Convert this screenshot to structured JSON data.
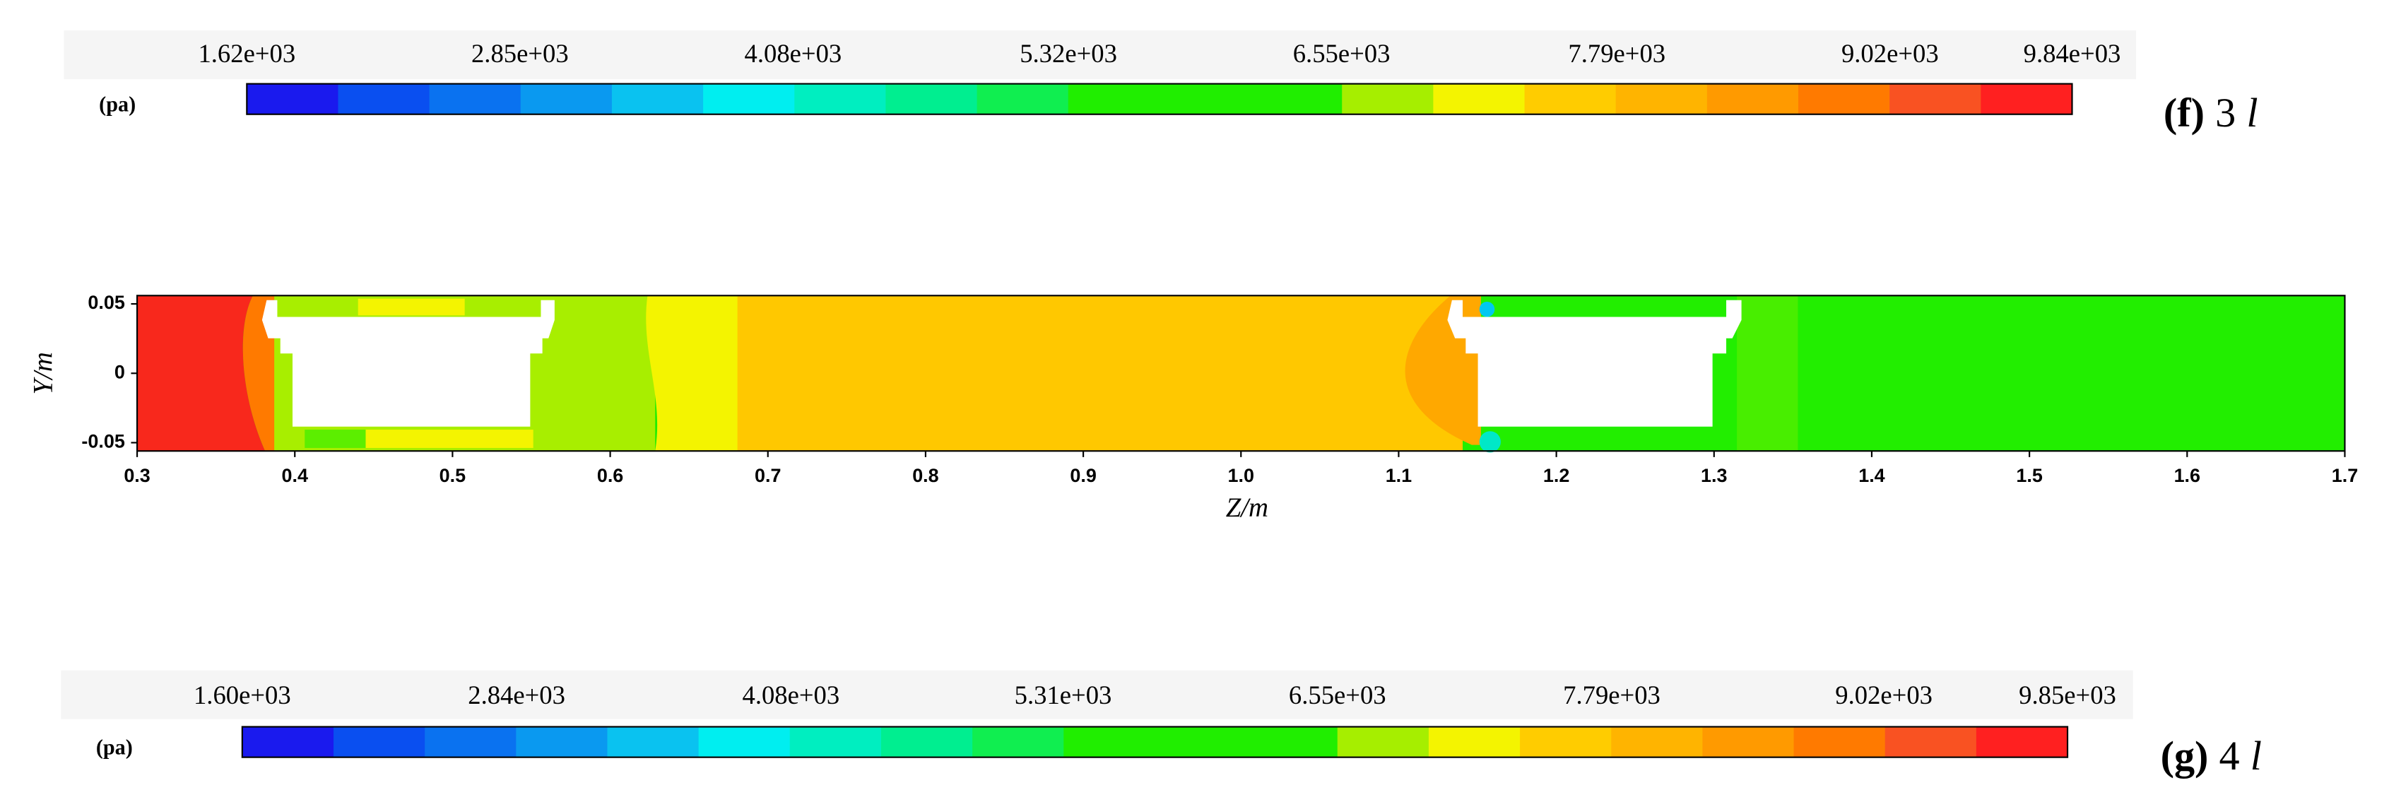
{
  "chart_data": [
    {
      "type": "colorbar",
      "unit": "(pa)",
      "panel": "(f)",
      "caption_value": "3",
      "caption_unit": "l",
      "xlim": [
        1620,
        9840
      ],
      "ticks": [
        {
          "value": 1620,
          "label": "1.62e+03"
        },
        {
          "value": 2850,
          "label": "2.85e+03"
        },
        {
          "value": 4080,
          "label": "4.08e+03"
        },
        {
          "value": 5320,
          "label": "5.32e+03"
        },
        {
          "value": 6550,
          "label": "6.55e+03"
        },
        {
          "value": 7790,
          "label": "7.79e+03"
        },
        {
          "value": 9020,
          "label": "9.02e+03"
        },
        {
          "value": 9840,
          "label": "9.84e+03"
        }
      ],
      "colors": [
        "#1a1aee",
        "#0a4ff0",
        "#0a72f0",
        "#0a99f0",
        "#0ac2f0",
        "#00eef0",
        "#00eec0",
        "#00ee90",
        "#10ee50",
        "#20ee00",
        "#20ee00",
        "#20ee00",
        "#a6ee00",
        "#f4f400",
        "#ffcc00",
        "#ffb400",
        "#ff9a00",
        "#ff7a00",
        "#f95222",
        "#ff2020"
      ]
    },
    {
      "type": "contour",
      "xlabel": "Z/m",
      "ylabel": "Y/m",
      "xlim": [
        0.3,
        1.7
      ],
      "ylim": [
        -0.056,
        0.056
      ],
      "xticks": [
        0.3,
        0.4,
        0.5,
        0.6,
        0.7,
        0.8,
        0.9,
        {
          "value": 1,
          "label": "1.0"
        },
        1.1,
        1.2,
        1.3,
        1.4,
        1.5,
        1.6,
        1.7
      ],
      "yticks": [
        0.05,
        0,
        -0.05
      ]
    },
    {
      "type": "colorbar",
      "unit": "(pa)",
      "panel": "(g)",
      "caption_value": "4",
      "caption_unit": "l",
      "xlim": [
        1600,
        9850
      ],
      "ticks": [
        {
          "value": 1600,
          "label": "1.60e+03"
        },
        {
          "value": 2840,
          "label": "2.84e+03"
        },
        {
          "value": 4080,
          "label": "4.08e+03"
        },
        {
          "value": 5310,
          "label": "5.31e+03"
        },
        {
          "value": 6550,
          "label": "6.55e+03"
        },
        {
          "value": 7790,
          "label": "7.79e+03"
        },
        {
          "value": 9020,
          "label": "9.02e+03"
        },
        {
          "value": 9850,
          "label": "9.85e+03"
        }
      ],
      "colors": [
        "#1a1aee",
        "#0a4ff0",
        "#0a72f0",
        "#0a99f0",
        "#0ac2f0",
        "#00eef0",
        "#00eec0",
        "#00ee90",
        "#10ee50",
        "#20ee00",
        "#20ee00",
        "#20ee00",
        "#a6ee00",
        "#f4f400",
        "#ffcc00",
        "#ffb400",
        "#ff9a00",
        "#ff7a00",
        "#f95222",
        "#ff2020"
      ]
    }
  ]
}
